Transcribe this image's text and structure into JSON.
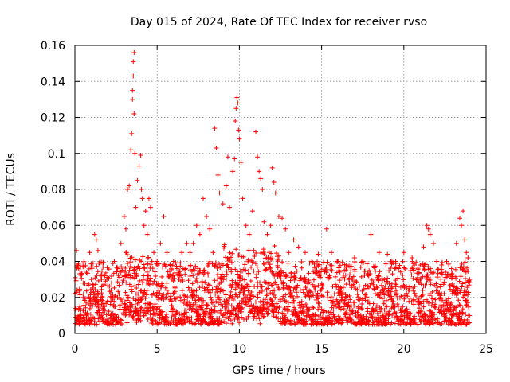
{
  "chart_data": {
    "type": "scatter",
    "title": "Day 015 of 2024, Rate Of TEC Index for receiver rvso",
    "xlabel": "GPS time / hours",
    "ylabel": "ROTI / TECUs",
    "xlim": [
      0,
      25
    ],
    "ylim": [
      0,
      0.16
    ],
    "xticks": [
      0,
      5,
      10,
      15,
      20,
      25
    ],
    "yticks": [
      0,
      0.02,
      0.04,
      0.06,
      0.08,
      0.1,
      0.12,
      0.14,
      0.16
    ],
    "xtick_labels": [
      "0",
      "5",
      "10",
      "15",
      "20",
      "25"
    ],
    "ytick_labels": [
      "0",
      "0.02",
      "0.04",
      "0.06",
      "0.08",
      "0.1",
      "0.12",
      "0.14",
      "0.16"
    ],
    "grid": true,
    "marker": "+",
    "color": "#ff0000",
    "series": [
      {
        "name": "ROTI",
        "points": [
          [
            0.0,
            0.022
          ],
          [
            0.1,
            0.046
          ],
          [
            0.2,
            0.038
          ],
          [
            0.3,
            0.015
          ],
          [
            0.5,
            0.028
          ],
          [
            0.7,
            0.034
          ],
          [
            0.9,
            0.045
          ],
          [
            1.0,
            0.03
          ],
          [
            1.2,
            0.055
          ],
          [
            1.3,
            0.052
          ],
          [
            1.4,
            0.046
          ],
          [
            1.6,
            0.02
          ],
          [
            1.8,
            0.015
          ],
          [
            2.0,
            0.018
          ],
          [
            2.2,
            0.024
          ],
          [
            2.4,
            0.04
          ],
          [
            2.6,
            0.036
          ],
          [
            2.8,
            0.05
          ],
          [
            3.0,
            0.065
          ],
          [
            3.1,
            0.058
          ],
          [
            3.2,
            0.08
          ],
          [
            3.3,
            0.082
          ],
          [
            3.4,
            0.102
          ],
          [
            3.45,
            0.111
          ],
          [
            3.5,
            0.13
          ],
          [
            3.5,
            0.135
          ],
          [
            3.55,
            0.143
          ],
          [
            3.55,
            0.151
          ],
          [
            3.6,
            0.156
          ],
          [
            3.6,
            0.122
          ],
          [
            3.65,
            0.1
          ],
          [
            3.7,
            0.07
          ],
          [
            3.8,
            0.085
          ],
          [
            3.9,
            0.093
          ],
          [
            4.0,
            0.099
          ],
          [
            4.05,
            0.08
          ],
          [
            4.1,
            0.075
          ],
          [
            4.2,
            0.06
          ],
          [
            4.3,
            0.068
          ],
          [
            4.4,
            0.055
          ],
          [
            4.5,
            0.075
          ],
          [
            4.6,
            0.07
          ],
          [
            4.8,
            0.045
          ],
          [
            5.0,
            0.04
          ],
          [
            5.2,
            0.05
          ],
          [
            5.4,
            0.065
          ],
          [
            5.6,
            0.045
          ],
          [
            5.8,
            0.038
          ],
          [
            6.0,
            0.04
          ],
          [
            6.2,
            0.036
          ],
          [
            6.5,
            0.045
          ],
          [
            6.8,
            0.05
          ],
          [
            7.0,
            0.045
          ],
          [
            7.2,
            0.05
          ],
          [
            7.4,
            0.06
          ],
          [
            7.6,
            0.055
          ],
          [
            7.8,
            0.075
          ],
          [
            8.0,
            0.065
          ],
          [
            8.2,
            0.058
          ],
          [
            8.4,
            0.045
          ],
          [
            8.5,
            0.114
          ],
          [
            8.6,
            0.103
          ],
          [
            8.7,
            0.088
          ],
          [
            8.8,
            0.078
          ],
          [
            9.0,
            0.072
          ],
          [
            9.2,
            0.082
          ],
          [
            9.3,
            0.098
          ],
          [
            9.4,
            0.07
          ],
          [
            9.6,
            0.09
          ],
          [
            9.7,
            0.097
          ],
          [
            9.75,
            0.118
          ],
          [
            9.8,
            0.125
          ],
          [
            9.85,
            0.131
          ],
          [
            9.9,
            0.128
          ],
          [
            9.95,
            0.113
          ],
          [
            10.0,
            0.108
          ],
          [
            10.1,
            0.095
          ],
          [
            10.2,
            0.075
          ],
          [
            10.4,
            0.06
          ],
          [
            10.6,
            0.055
          ],
          [
            10.8,
            0.068
          ],
          [
            11.0,
            0.112
          ],
          [
            11.1,
            0.098
          ],
          [
            11.2,
            0.09
          ],
          [
            11.3,
            0.086
          ],
          [
            11.4,
            0.08
          ],
          [
            11.5,
            0.062
          ],
          [
            11.7,
            0.055
          ],
          [
            11.9,
            0.06
          ],
          [
            12.0,
            0.092
          ],
          [
            12.1,
            0.084
          ],
          [
            12.2,
            0.078
          ],
          [
            12.4,
            0.065
          ],
          [
            12.6,
            0.064
          ],
          [
            12.8,
            0.058
          ],
          [
            13.0,
            0.045
          ],
          [
            13.3,
            0.052
          ],
          [
            13.6,
            0.048
          ],
          [
            14.0,
            0.045
          ],
          [
            14.4,
            0.04
          ],
          [
            14.8,
            0.044
          ],
          [
            15.3,
            0.058
          ],
          [
            15.6,
            0.045
          ],
          [
            16.0,
            0.04
          ],
          [
            16.5,
            0.038
          ],
          [
            17.0,
            0.042
          ],
          [
            17.5,
            0.04
          ],
          [
            18.0,
            0.055
          ],
          [
            18.5,
            0.045
          ],
          [
            19.0,
            0.044
          ],
          [
            19.5,
            0.04
          ],
          [
            20.0,
            0.045
          ],
          [
            20.5,
            0.042
          ],
          [
            21.0,
            0.038
          ],
          [
            21.2,
            0.048
          ],
          [
            21.4,
            0.06
          ],
          [
            21.5,
            0.058
          ],
          [
            21.6,
            0.055
          ],
          [
            21.8,
            0.05
          ],
          [
            22.0,
            0.04
          ],
          [
            22.3,
            0.038
          ],
          [
            22.6,
            0.04
          ],
          [
            22.9,
            0.036
          ],
          [
            23.2,
            0.05
          ],
          [
            23.4,
            0.064
          ],
          [
            23.5,
            0.06
          ],
          [
            23.6,
            0.068
          ],
          [
            23.7,
            0.052
          ],
          [
            23.8,
            0.045
          ],
          [
            23.9,
            0.042
          ],
          [
            24.0,
            0.03
          ]
        ]
      }
    ],
    "baseline_band": {
      "description": "dense cloud of points across 0-24 h",
      "min": 0.005,
      "max": 0.04
    }
  }
}
